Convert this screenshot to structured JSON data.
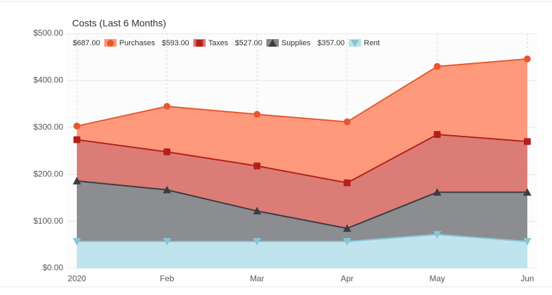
{
  "chart_data": {
    "type": "stacked-area",
    "title": "Costs (Last 6 Months)",
    "categories": [
      "2020",
      "Feb",
      "Mar",
      "Apr",
      "May",
      "Jun"
    ],
    "series": [
      {
        "name": "Purchases",
        "total_label": "$687.00",
        "color": "#ff9474",
        "line_color": "#e8572f",
        "marker": "circle",
        "values": [
          29,
          97,
          110,
          130,
          145,
          176
        ]
      },
      {
        "name": "Taxes",
        "total_label": "$593.00",
        "color": "#d97570",
        "line_color": "#b3211a",
        "marker": "square",
        "values": [
          88,
          81,
          96,
          97,
          123,
          108
        ]
      },
      {
        "name": "Supplies",
        "total_label": "$527.00",
        "color": "#85878a",
        "line_color": "#3a3d42",
        "marker": "triangle-up",
        "values": [
          129,
          110,
          65,
          28,
          90,
          105
        ]
      },
      {
        "name": "Rent",
        "total_label": "$357.00",
        "color": "#bde3ec",
        "line_color": "#8ac4d6",
        "marker": "triangle-down",
        "values": [
          57,
          57,
          57,
          57,
          72,
          57
        ]
      }
    ],
    "ylim": [
      0,
      500
    ],
    "yticks": [
      {
        "value": 0,
        "label": "$0.00"
      },
      {
        "value": 100,
        "label": "$100.00"
      },
      {
        "value": 200,
        "label": "$200.00"
      },
      {
        "value": 300,
        "label": "$300.00"
      },
      {
        "value": 400,
        "label": "$400.00"
      },
      {
        "value": 500,
        "label": "$500.00"
      }
    ],
    "grid": true
  }
}
